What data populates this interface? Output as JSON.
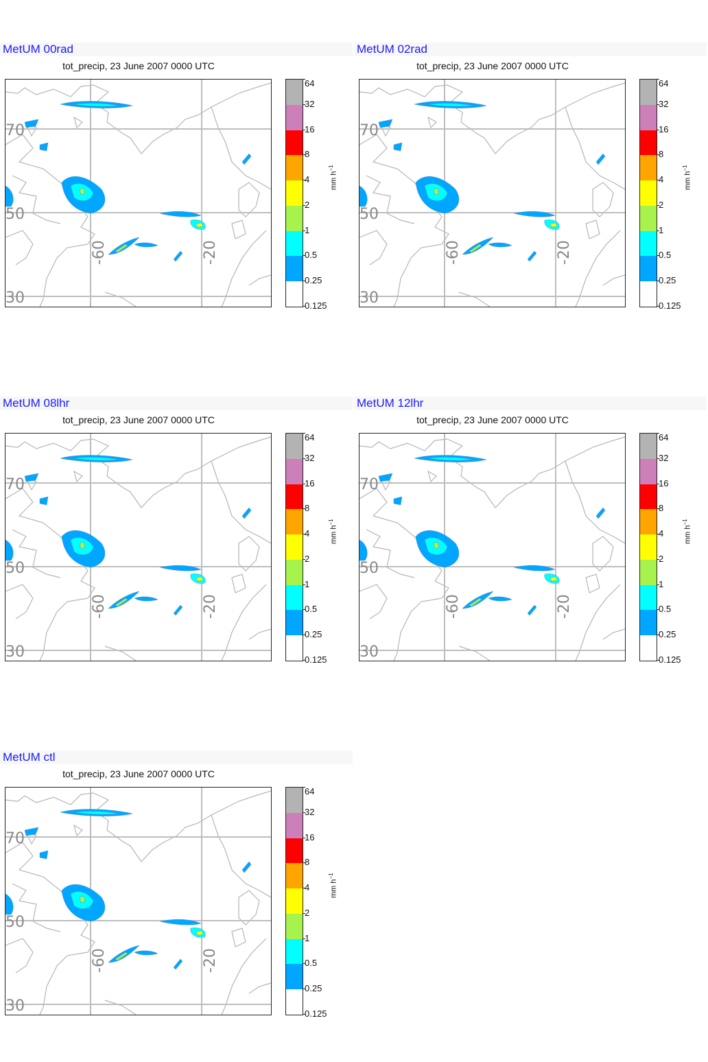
{
  "subtitle": "tot_precip, 23 June 2007 0000 UTC",
  "units_label": "mm h",
  "units_exponent": "−1",
  "colorbar": {
    "levels": [
      "64",
      "32",
      "16",
      "8",
      "4",
      "2",
      "1",
      "0.5",
      "0.25",
      "0.125"
    ],
    "colors": [
      "#b3b3b3",
      "#cc7fb9",
      "#ff0000",
      "#ffa500",
      "#ffff00",
      "#a7f24d",
      "#00ffff",
      "#00a6ff",
      "#ffffff"
    ]
  },
  "map": {
    "lat_labels": [
      "70",
      "50",
      "30"
    ],
    "lon_labels": [
      "-60",
      "-20"
    ]
  },
  "panels": [
    {
      "title": "MetUM 00rad"
    },
    {
      "title": "MetUM 02rad"
    },
    {
      "title": "MetUM 08lhr"
    },
    {
      "title": "MetUM 12lhr"
    },
    {
      "title": "MetUM ctl"
    }
  ]
}
